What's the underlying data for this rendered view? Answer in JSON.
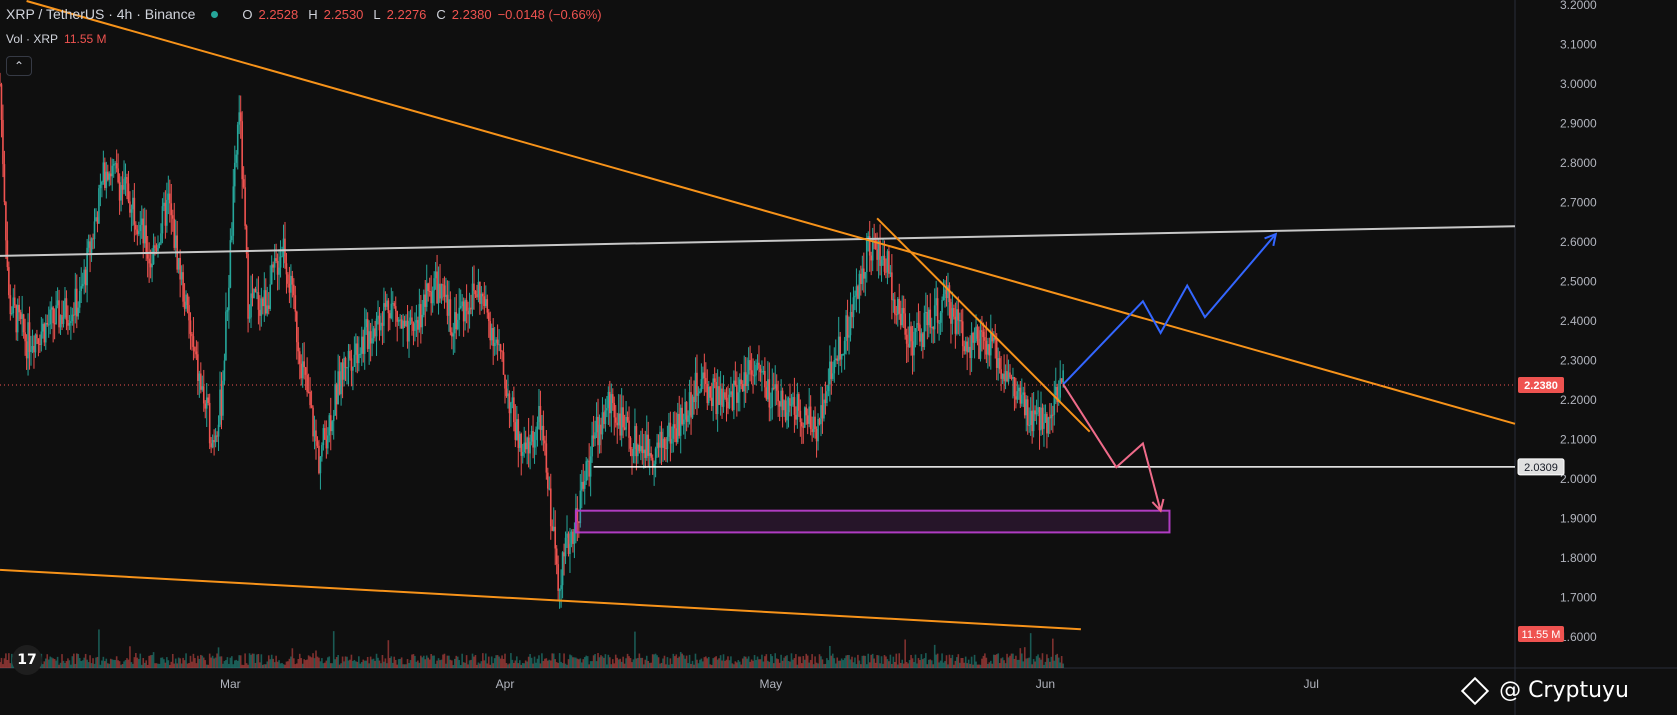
{
  "legend": {
    "symbol": "XRP / TetherUS · 4h · Binance",
    "open_label": "O",
    "open": "2.2528",
    "high_label": "H",
    "high": "2.2530",
    "low_label": "L",
    "low": "2.2276",
    "close_label": "C",
    "close": "2.2380",
    "change": "−0.0148 (−0.66%)"
  },
  "volume": {
    "label": "Vol · XRP",
    "value": "11.55 M"
  },
  "collapse_icon": "chevron-up-icon",
  "watermark": "@ Cryptuyu",
  "tv_logo": "17",
  "colors": {
    "up": "#26a69a",
    "down": "#ef5350",
    "orange": "#f7931a",
    "blue": "#3366ff",
    "pink": "#ef6b8a",
    "purple": "#b03cc2",
    "grey_line": "#c8c8c8"
  },
  "chart_data": {
    "type": "candlestick",
    "symbol": "XRP/USDT",
    "interval": "4h",
    "ylim": [
      1.58,
      3.2
    ],
    "y_ticks": [
      "3.2000",
      "3.1000",
      "3.0000",
      "2.9000",
      "2.8000",
      "2.7000",
      "2.6000",
      "2.5000",
      "2.4000",
      "2.3000",
      "2.2000",
      "2.1000",
      "2.0000",
      "1.9000",
      "1.8000",
      "1.7000",
      "1.6000"
    ],
    "x_ticks": [
      "Mar",
      "Apr",
      "May",
      "Jun",
      "Jul"
    ],
    "x_range": [
      "2025-02-03",
      "2025-07-24"
    ],
    "price_anchors": [
      [
        "2025-02-03",
        3.0
      ],
      [
        "2025-02-04",
        2.45
      ],
      [
        "2025-02-06",
        2.35
      ],
      [
        "2025-02-09",
        2.4
      ],
      [
        "2025-02-12",
        2.45
      ],
      [
        "2025-02-15",
        2.8
      ],
      [
        "2025-02-18",
        2.7
      ],
      [
        "2025-02-20",
        2.55
      ],
      [
        "2025-02-22",
        2.7
      ],
      [
        "2025-02-25",
        2.3
      ],
      [
        "2025-02-27",
        2.1
      ],
      [
        "2025-02-28",
        2.2
      ],
      [
        "2025-03-02",
        2.95
      ],
      [
        "2025-03-03",
        2.45
      ],
      [
        "2025-03-05",
        2.45
      ],
      [
        "2025-03-07",
        2.6
      ],
      [
        "2025-03-09",
        2.3
      ],
      [
        "2025-03-11",
        2.05
      ],
      [
        "2025-03-14",
        2.3
      ],
      [
        "2025-03-16",
        2.35
      ],
      [
        "2025-03-19",
        2.45
      ],
      [
        "2025-03-21",
        2.35
      ],
      [
        "2025-03-24",
        2.5
      ],
      [
        "2025-03-26",
        2.4
      ],
      [
        "2025-03-29",
        2.48
      ],
      [
        "2025-03-31",
        2.35
      ],
      [
        "2025-04-03",
        2.05
      ],
      [
        "2025-04-05",
        2.15
      ],
      [
        "2025-04-07",
        1.75
      ],
      [
        "2025-04-09",
        1.9
      ],
      [
        "2025-04-11",
        2.1
      ],
      [
        "2025-04-13",
        2.2
      ],
      [
        "2025-04-15",
        2.1
      ],
      [
        "2025-04-18",
        2.07
      ],
      [
        "2025-04-21",
        2.15
      ],
      [
        "2025-04-23",
        2.25
      ],
      [
        "2025-04-26",
        2.18
      ],
      [
        "2025-04-29",
        2.3
      ],
      [
        "2025-05-01",
        2.2
      ],
      [
        "2025-05-04",
        2.18
      ],
      [
        "2025-05-06",
        2.12
      ],
      [
        "2025-05-08",
        2.3
      ],
      [
        "2025-05-10",
        2.4
      ],
      [
        "2025-05-12",
        2.6
      ],
      [
        "2025-05-14",
        2.55
      ],
      [
        "2025-05-15",
        2.45
      ],
      [
        "2025-05-17",
        2.35
      ],
      [
        "2025-05-19",
        2.4
      ],
      [
        "2025-05-21",
        2.45
      ],
      [
        "2025-05-23",
        2.35
      ],
      [
        "2025-05-26",
        2.33
      ],
      [
        "2025-05-28",
        2.25
      ],
      [
        "2025-05-30",
        2.15
      ],
      [
        "2025-06-01",
        2.15
      ],
      [
        "2025-06-03",
        2.25
      ]
    ],
    "last_price": 2.238,
    "volume_last": "11.55M",
    "horizontal_levels": [
      2.0309
    ],
    "annotations": {
      "descending_resistance_upper": [
        [
          "2025-02-06",
          3.21
        ],
        [
          "2025-07-24",
          2.14
        ]
      ],
      "descending_support_lower": [
        [
          "2025-02-03",
          1.77
        ],
        [
          "2025-06-05",
          1.62
        ]
      ],
      "short_trendline": [
        [
          "2025-05-13",
          2.66
        ],
        [
          "2025-06-06",
          2.12
        ]
      ],
      "horizontal_resistance": [
        [
          "2025-02-03",
          2.565
        ],
        [
          "2025-07-24",
          2.64
        ]
      ],
      "support_2_0309": [
        [
          "2025-04-11",
          2.0309
        ],
        [
          "2025-07-24",
          2.0309
        ]
      ],
      "demand_zone": {
        "from": "2025-04-09",
        "to": "2025-06-15",
        "top": 1.92,
        "bottom": 1.865
      },
      "bullish_path": [
        [
          "2025-06-03",
          2.24
        ],
        [
          "2025-06-12",
          2.45
        ],
        [
          "2025-06-14",
          2.37
        ],
        [
          "2025-06-17",
          2.49
        ],
        [
          "2025-06-19",
          2.41
        ],
        [
          "2025-06-27",
          2.62
        ]
      ],
      "bearish_path": [
        [
          "2025-06-03",
          2.24
        ],
        [
          "2025-06-09",
          2.03
        ],
        [
          "2025-06-12",
          2.09
        ],
        [
          "2025-06-14",
          1.92
        ]
      ]
    }
  },
  "axis_labels": {
    "last_price": "2.2380",
    "level": "2.0309",
    "volume": "11.55 M"
  }
}
